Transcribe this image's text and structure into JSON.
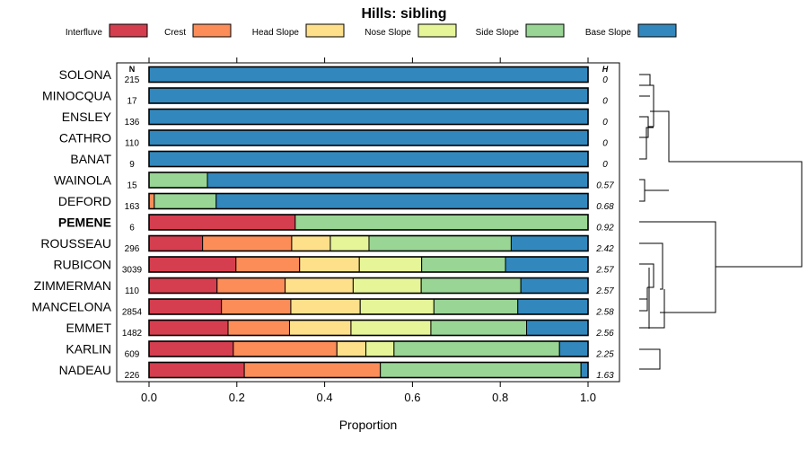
{
  "chart_data": {
    "type": "bar",
    "orientation": "horizontal",
    "stacked": true,
    "title": "Hills: sibling",
    "xlabel": "Proportion",
    "ylabel": "",
    "xlim": [
      0,
      1
    ],
    "xticks": [
      "0.0",
      "0.2",
      "0.4",
      "0.6",
      "0.8",
      "1.0"
    ],
    "n_header": "N",
    "h_header": "H",
    "highlight": "PEMENE",
    "legend": [
      {
        "name": "Interfluve",
        "color": "#D53E4F"
      },
      {
        "name": "Crest",
        "color": "#FC8D59"
      },
      {
        "name": "Head Slope",
        "color": "#FEE08B"
      },
      {
        "name": "Nose Slope",
        "color": "#E6F598"
      },
      {
        "name": "Side Slope",
        "color": "#99D594"
      },
      {
        "name": "Base Slope",
        "color": "#3288BD"
      }
    ],
    "rows": [
      {
        "label": "SOLONA",
        "n": "215",
        "h": "0",
        "values": [
          0,
          0,
          0,
          0,
          0,
          1.0
        ]
      },
      {
        "label": "MINOCQUA",
        "n": "17",
        "h": "0",
        "values": [
          0,
          0,
          0,
          0,
          0,
          1.0
        ]
      },
      {
        "label": "ENSLEY",
        "n": "136",
        "h": "0",
        "values": [
          0,
          0,
          0,
          0,
          0,
          1.0
        ]
      },
      {
        "label": "CATHRO",
        "n": "110",
        "h": "0",
        "values": [
          0,
          0,
          0,
          0,
          0,
          1.0
        ]
      },
      {
        "label": "BANAT",
        "n": "9",
        "h": "0",
        "values": [
          0,
          0,
          0,
          0,
          0,
          1.0
        ]
      },
      {
        "label": "WAINOLA",
        "n": "15",
        "h": "0.57",
        "values": [
          0,
          0,
          0,
          0,
          0.133,
          0.867
        ]
      },
      {
        "label": "DEFORD",
        "n": "163",
        "h": "0.68",
        "values": [
          0,
          0.012,
          0,
          0,
          0.141,
          0.847
        ]
      },
      {
        "label": "PEMENE",
        "n": "6",
        "h": "0.92",
        "values": [
          0.333,
          0,
          0,
          0,
          0.667,
          0
        ]
      },
      {
        "label": "ROUSSEAU",
        "n": "296",
        "h": "2.42",
        "values": [
          0.122,
          0.203,
          0.088,
          0.088,
          0.324,
          0.175
        ]
      },
      {
        "label": "RUBICON",
        "n": "3039",
        "h": "2.57",
        "values": [
          0.198,
          0.145,
          0.136,
          0.142,
          0.191,
          0.188
        ]
      },
      {
        "label": "ZIMMERMAN",
        "n": "110",
        "h": "2.57",
        "values": [
          0.155,
          0.155,
          0.155,
          0.155,
          0.227,
          0.153
        ]
      },
      {
        "label": "MANCELONA",
        "n": "2854",
        "h": "2.58",
        "values": [
          0.165,
          0.158,
          0.158,
          0.168,
          0.191,
          0.16
        ]
      },
      {
        "label": "EMMET",
        "n": "1482",
        "h": "2.56",
        "values": [
          0.18,
          0.14,
          0.14,
          0.182,
          0.218,
          0.14
        ]
      },
      {
        "label": "KARLIN",
        "n": "609",
        "h": "2.25",
        "values": [
          0.192,
          0.236,
          0.066,
          0.064,
          0.377,
          0.065
        ]
      },
      {
        "label": "NADEAU",
        "n": "226",
        "h": "1.63",
        "values": [
          0.217,
          0.31,
          0,
          0,
          0.457,
          0.016
        ]
      }
    ]
  }
}
